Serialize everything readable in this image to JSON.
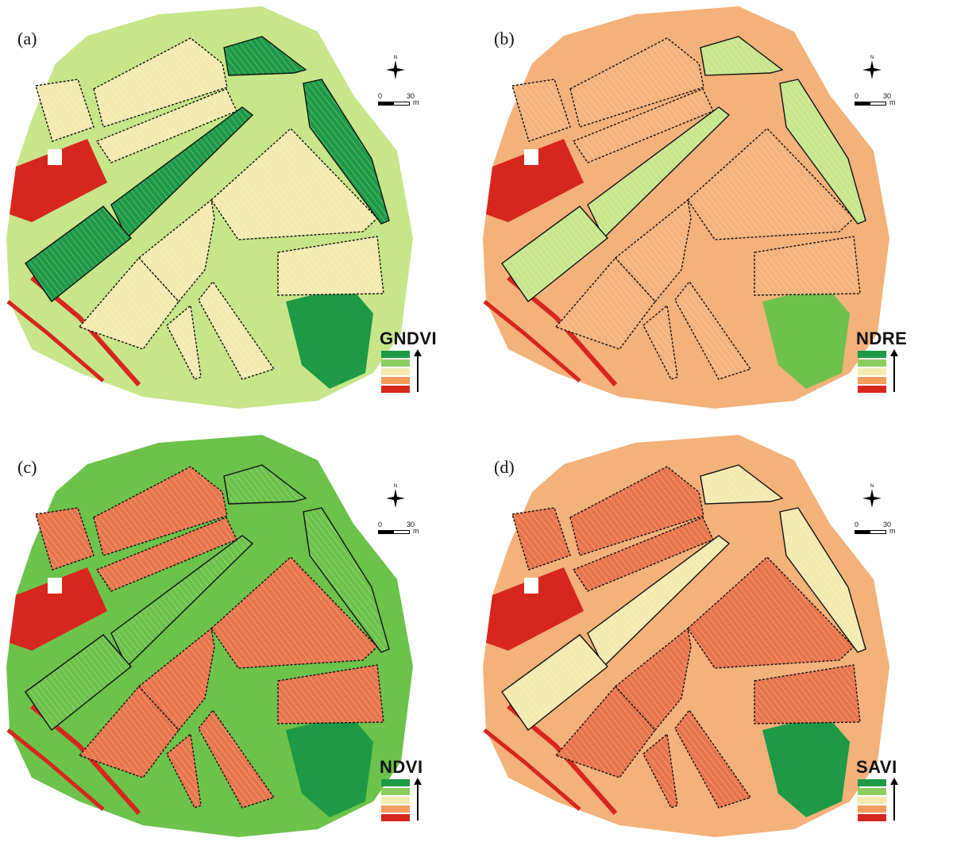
{
  "colors": {
    "dark_green": "#1e9a46",
    "green": "#6cc24a",
    "light_green": "#c7e68a",
    "yellow": "#f4eab0",
    "light_orange": "#f3b27a",
    "orange": "#e8754a",
    "red": "#d7261e",
    "outline": "#111111"
  },
  "scale": {
    "start": "0",
    "end": "30",
    "unit": "m"
  },
  "north_label": "N",
  "panels": [
    {
      "label": "(a)",
      "index": "GNDVI",
      "scheme": "gndvi"
    },
    {
      "label": "(b)",
      "index": "NDRE",
      "scheme": "ndre"
    },
    {
      "label": "(c)",
      "index": "NDVI",
      "scheme": "ndvi"
    },
    {
      "label": "(d)",
      "index": "SAVI",
      "scheme": "savi"
    }
  ],
  "legend_colors": [
    "#1e9a46",
    "#8ccf5e",
    "#f4eab0",
    "#f39c5e",
    "#d7261e"
  ]
}
